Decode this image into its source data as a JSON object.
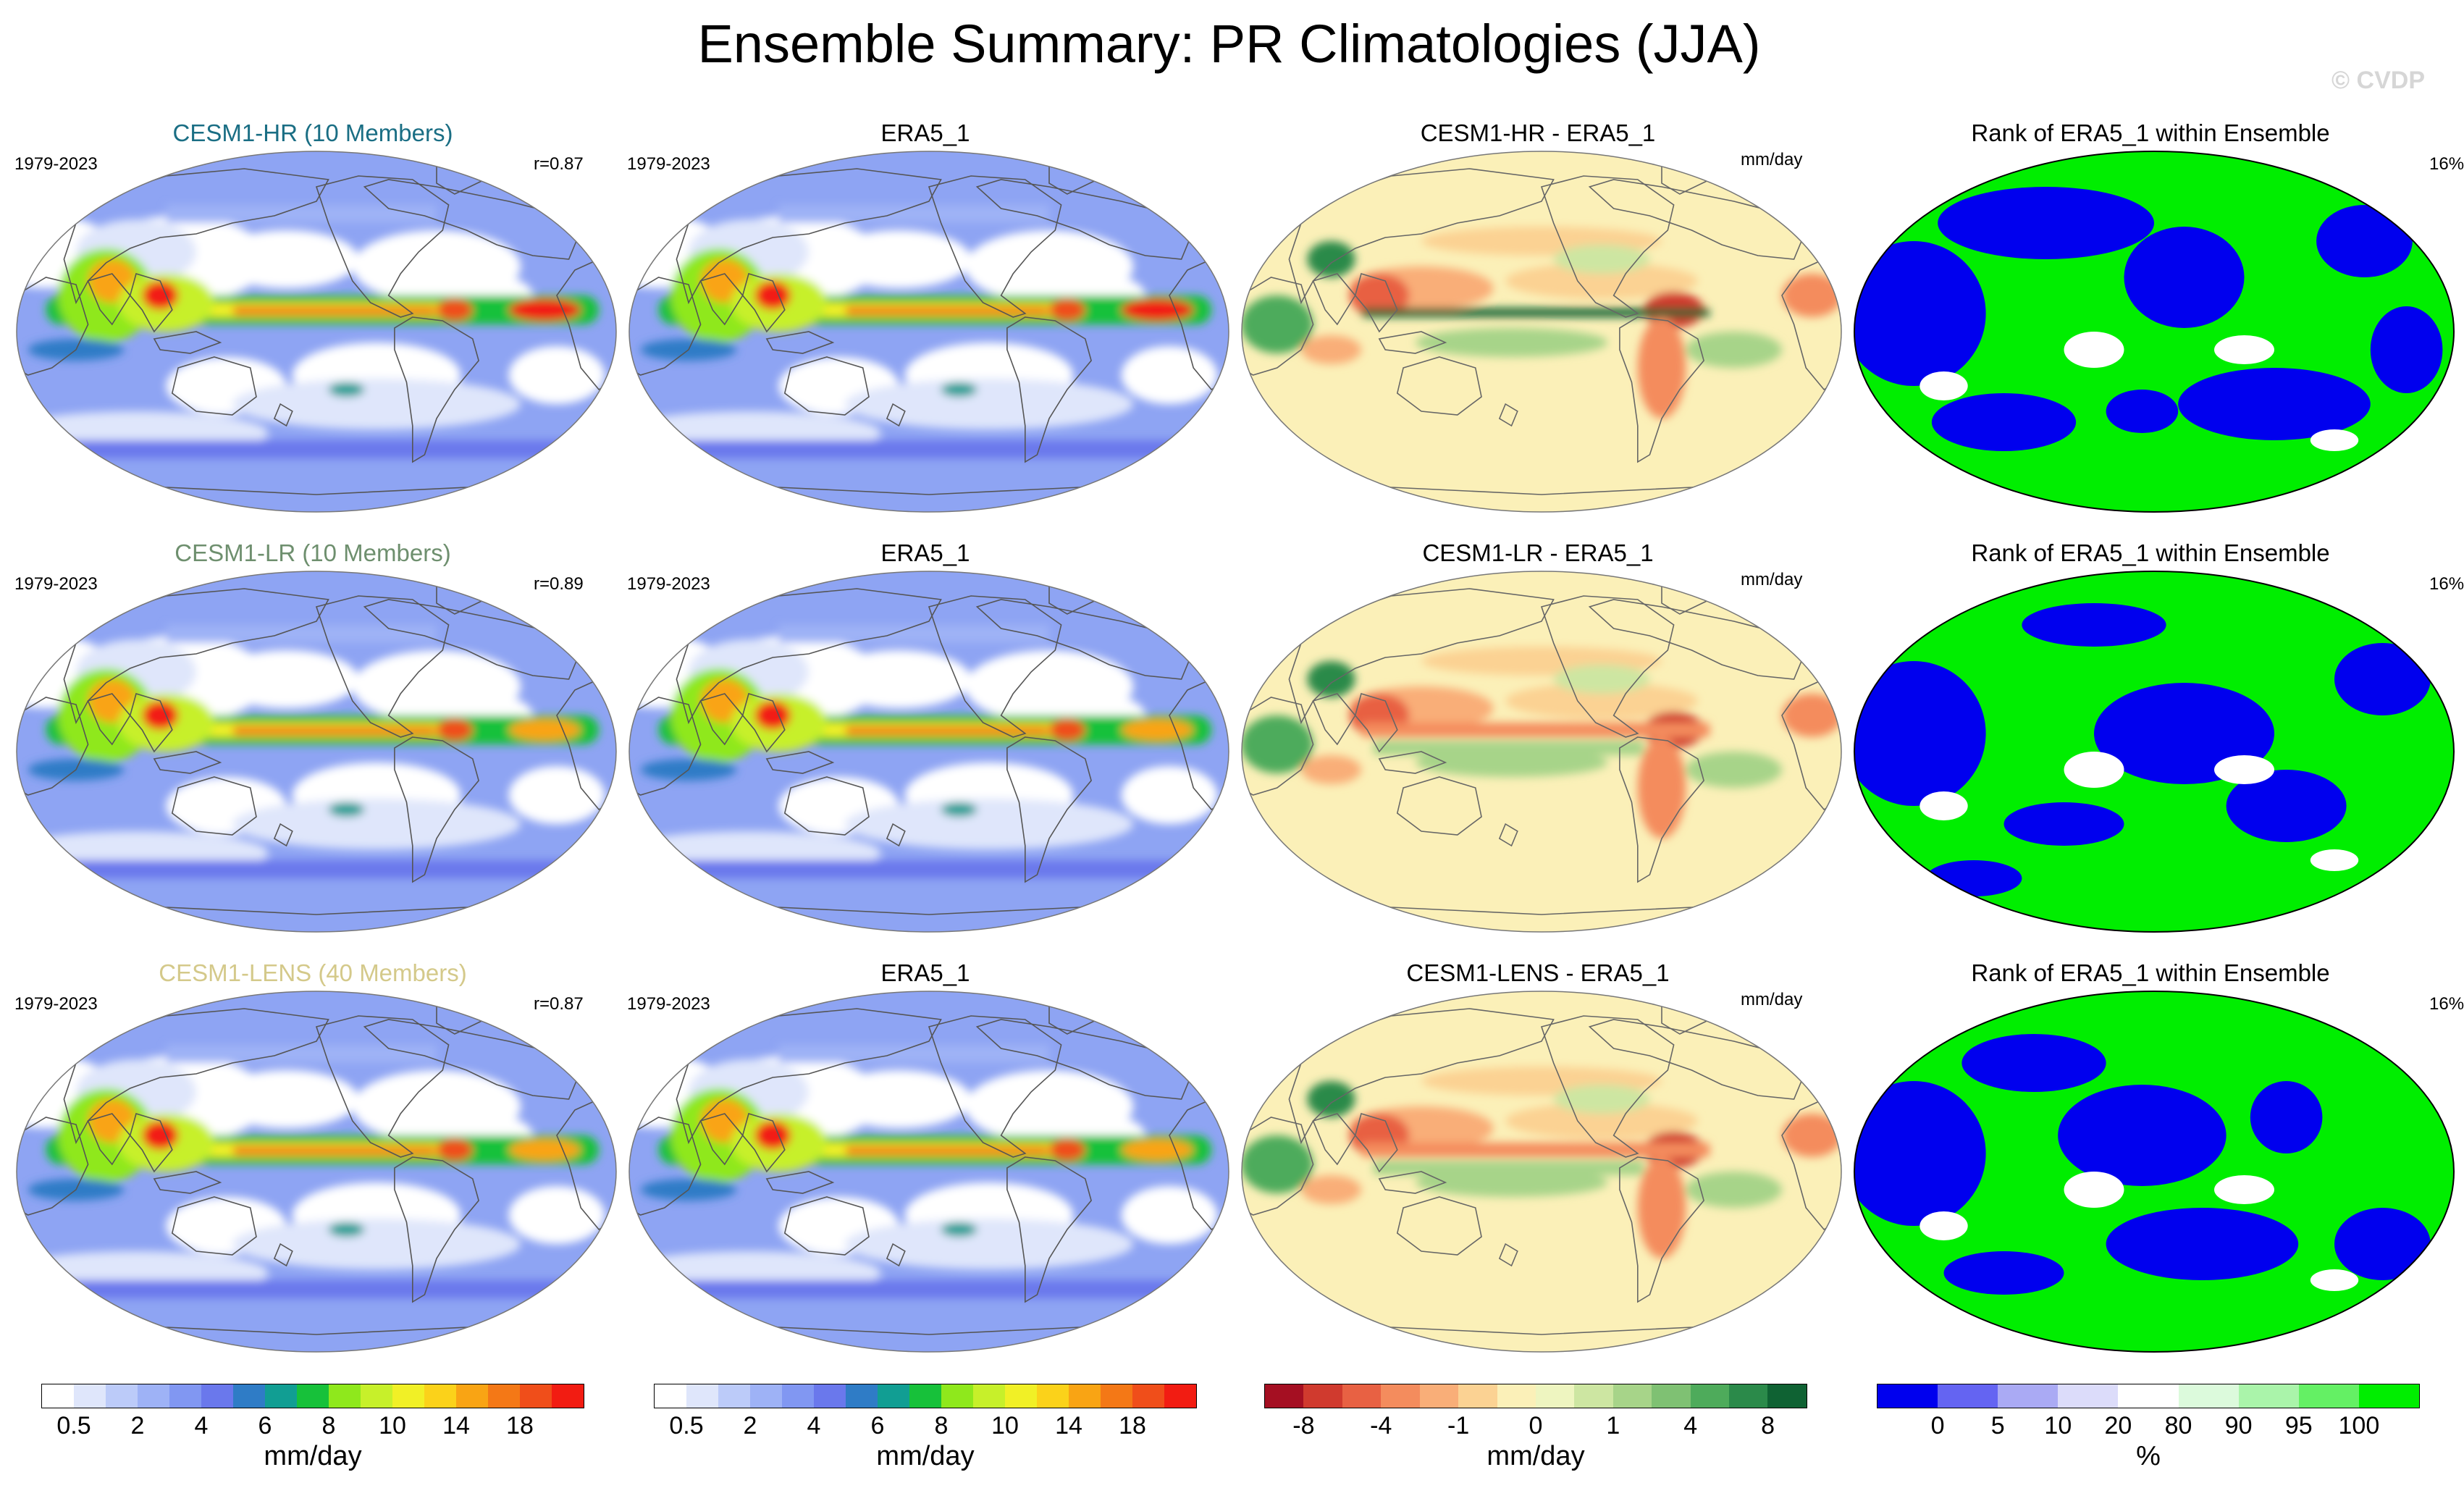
{
  "title": "Ensemble Summary: PR Climatologies (JJA)",
  "watermark": "© CVDP",
  "rows": [
    {
      "ensemble": {
        "title": "CESM1-HR (10 Members)",
        "title_color": "#1a6e84",
        "years": "1979-2023",
        "corr": "r=0.87"
      },
      "obs": {
        "title": "ERA5_1",
        "years": "1979-2023"
      },
      "diff": {
        "title": "CESM1-HR - ERA5_1",
        "units": "mm/day"
      },
      "rank": {
        "title": "Rank of ERA5_1 within Ensemble",
        "pct": "16%"
      }
    },
    {
      "ensemble": {
        "title": "CESM1-LR (10 Members)",
        "title_color": "#6e8f6e",
        "years": "1979-2023",
        "corr": "r=0.89"
      },
      "obs": {
        "title": "ERA5_1",
        "years": "1979-2023"
      },
      "diff": {
        "title": "CESM1-LR - ERA5_1",
        "units": "mm/day"
      },
      "rank": {
        "title": "Rank of ERA5_1 within Ensemble",
        "pct": "16%"
      }
    },
    {
      "ensemble": {
        "title": "CESM1-LENS (40 Members)",
        "title_color": "#d4c98a",
        "years": "1979-2023",
        "corr": "r=0.87"
      },
      "obs": {
        "title": "ERA5_1",
        "years": "1979-2023"
      },
      "diff": {
        "title": "CESM1-LENS - ERA5_1",
        "units": "mm/day"
      },
      "rank": {
        "title": "Rank of ERA5_1 within Ensemble",
        "pct": "16%"
      }
    }
  ],
  "chart_data": {
    "type": "heatmap",
    "projection": "Robinson (global, Pacific-centered)",
    "colorbars": [
      {
        "name": "precipitation",
        "units": "mm/day",
        "tick_labels": [
          "0.5",
          "2",
          "4",
          "6",
          "8",
          "10",
          "14",
          "18"
        ],
        "colors": [
          "#ffffff",
          "#dfe6fb",
          "#bccbf9",
          "#9eb2f6",
          "#8197f2",
          "#6a78ec",
          "#2f7cc6",
          "#119e93",
          "#17c13a",
          "#8fe81c",
          "#c7f02a",
          "#f1f026",
          "#fbd21a",
          "#f9a414",
          "#f47816",
          "#f04e1a",
          "#f21c12"
        ]
      },
      {
        "name": "difference",
        "units": "mm/day",
        "tick_labels": [
          "-8",
          "-4",
          "-1",
          "0",
          "1",
          "4",
          "8"
        ],
        "colors": [
          "#a50f22",
          "#d03a2e",
          "#e86143",
          "#f48c5d",
          "#f9ae78",
          "#fbd293",
          "#fbf0b8",
          "#eef5c0",
          "#cde6a2",
          "#a7d489",
          "#7fc173",
          "#4eab5b",
          "#2b8a4a",
          "#0f6233"
        ]
      },
      {
        "name": "rank",
        "units": "%",
        "tick_labels": [
          "0",
          "5",
          "10",
          "20",
          "80",
          "90",
          "95",
          "100"
        ],
        "colors": [
          "#0000ee",
          "#6464f2",
          "#aaaaf4",
          "#dcdcfa",
          "#ffffff",
          "#dcfadc",
          "#aaf4aa",
          "#64f064",
          "#00ee00"
        ]
      }
    ]
  }
}
